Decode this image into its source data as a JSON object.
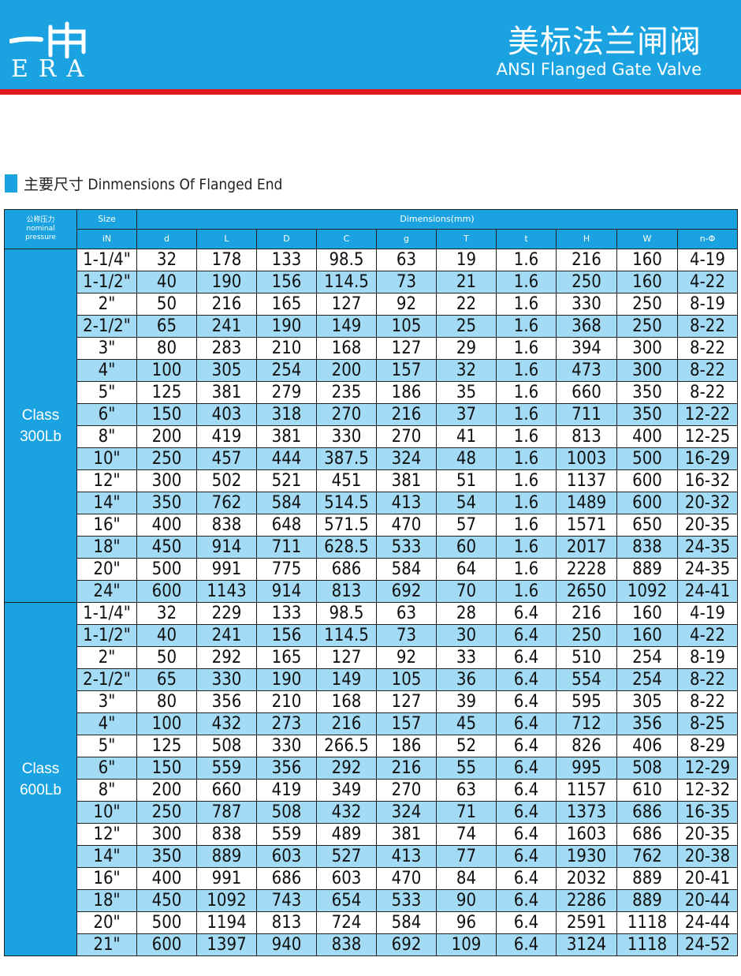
{
  "header": {
    "logo_cn": "一冉",
    "logo_en": "ERA",
    "title_cn": "美标法兰闸阀",
    "title_en": "ANSI Flanged Gate Valve"
  },
  "section": {
    "title": "主要尺寸 Dinmensions Of Flanged End"
  },
  "table": {
    "pressure_header_cn": "公称压力",
    "pressure_header_en1": "nominal",
    "pressure_header_en2": "pressure",
    "size_header": "Size",
    "dimensions_header": "Dimensions(mm)",
    "columns": [
      "iN",
      "d",
      "L",
      "D",
      "C",
      "g",
      "T",
      "t",
      "H",
      "W",
      "n-Φ"
    ],
    "groups": [
      {
        "class_line1": "Class",
        "class_line2": "300Lb",
        "rows": [
          [
            "1-1/4\"",
            "32",
            "178",
            "133",
            "98.5",
            "63",
            "19",
            "1.6",
            "216",
            "160",
            "4-19"
          ],
          [
            "1-1/2\"",
            "40",
            "190",
            "156",
            "114.5",
            "73",
            "21",
            "1.6",
            "250",
            "160",
            "4-22"
          ],
          [
            "2\"",
            "50",
            "216",
            "165",
            "127",
            "92",
            "22",
            "1.6",
            "330",
            "250",
            "8-19"
          ],
          [
            "2-1/2\"",
            "65",
            "241",
            "190",
            "149",
            "105",
            "25",
            "1.6",
            "368",
            "250",
            "8-22"
          ],
          [
            "3\"",
            "80",
            "283",
            "210",
            "168",
            "127",
            "29",
            "1.6",
            "394",
            "300",
            "8-22"
          ],
          [
            "4\"",
            "100",
            "305",
            "254",
            "200",
            "157",
            "32",
            "1.6",
            "473",
            "300",
            "8-22"
          ],
          [
            "5\"",
            "125",
            "381",
            "279",
            "235",
            "186",
            "35",
            "1.6",
            "660",
            "350",
            "8-22"
          ],
          [
            "6\"",
            "150",
            "403",
            "318",
            "270",
            "216",
            "37",
            "1.6",
            "711",
            "350",
            "12-22"
          ],
          [
            "8\"",
            "200",
            "419",
            "381",
            "330",
            "270",
            "41",
            "1.6",
            "813",
            "400",
            "12-25"
          ],
          [
            "10\"",
            "250",
            "457",
            "444",
            "387.5",
            "324",
            "48",
            "1.6",
            "1003",
            "500",
            "16-29"
          ],
          [
            "12\"",
            "300",
            "502",
            "521",
            "451",
            "381",
            "51",
            "1.6",
            "1137",
            "600",
            "16-32"
          ],
          [
            "14\"",
            "350",
            "762",
            "584",
            "514.5",
            "413",
            "54",
            "1.6",
            "1489",
            "600",
            "20-32"
          ],
          [
            "16\"",
            "400",
            "838",
            "648",
            "571.5",
            "470",
            "57",
            "1.6",
            "1571",
            "650",
            "20-35"
          ],
          [
            "18\"",
            "450",
            "914",
            "711",
            "628.5",
            "533",
            "60",
            "1.6",
            "2017",
            "838",
            "24-35"
          ],
          [
            "20\"",
            "500",
            "991",
            "775",
            "686",
            "584",
            "64",
            "1.6",
            "2228",
            "889",
            "24-35"
          ],
          [
            "24\"",
            "600",
            "1143",
            "914",
            "813",
            "692",
            "70",
            "1.6",
            "2650",
            "1092",
            "24-41"
          ]
        ]
      },
      {
        "class_line1": "Class",
        "class_line2": "600Lb",
        "rows": [
          [
            "1-1/4\"",
            "32",
            "229",
            "133",
            "98.5",
            "63",
            "28",
            "6.4",
            "216",
            "160",
            "4-19"
          ],
          [
            "1-1/2\"",
            "40",
            "241",
            "156",
            "114.5",
            "73",
            "30",
            "6.4",
            "250",
            "160",
            "4-22"
          ],
          [
            "2\"",
            "50",
            "292",
            "165",
            "127",
            "92",
            "33",
            "6.4",
            "510",
            "254",
            "8-19"
          ],
          [
            "2-1/2\"",
            "65",
            "330",
            "190",
            "149",
            "105",
            "36",
            "6.4",
            "554",
            "254",
            "8-22"
          ],
          [
            "3\"",
            "80",
            "356",
            "210",
            "168",
            "127",
            "39",
            "6.4",
            "595",
            "305",
            "8-22"
          ],
          [
            "4\"",
            "100",
            "432",
            "273",
            "216",
            "157",
            "45",
            "6.4",
            "712",
            "356",
            "8-25"
          ],
          [
            "5\"",
            "125",
            "508",
            "330",
            "266.5",
            "186",
            "52",
            "6.4",
            "826",
            "406",
            "8-29"
          ],
          [
            "6\"",
            "150",
            "559",
            "356",
            "292",
            "216",
            "55",
            "6.4",
            "995",
            "508",
            "12-29"
          ],
          [
            "8\"",
            "200",
            "660",
            "419",
            "349",
            "270",
            "63",
            "6.4",
            "1157",
            "610",
            "12-32"
          ],
          [
            "10\"",
            "250",
            "787",
            "508",
            "432",
            "324",
            "71",
            "6.4",
            "1373",
            "686",
            "16-35"
          ],
          [
            "12\"",
            "300",
            "838",
            "559",
            "489",
            "381",
            "74",
            "6.4",
            "1603",
            "686",
            "20-35"
          ],
          [
            "14\"",
            "350",
            "889",
            "603",
            "527",
            "413",
            "77",
            "6.4",
            "1930",
            "762",
            "20-38"
          ],
          [
            "16\"",
            "400",
            "991",
            "686",
            "603",
            "470",
            "84",
            "6.4",
            "2032",
            "889",
            "20-41"
          ],
          [
            "18\"",
            "450",
            "1092",
            "743",
            "654",
            "533",
            "90",
            "6.4",
            "2286",
            "889",
            "20-44"
          ],
          [
            "20\"",
            "500",
            "1194",
            "813",
            "724",
            "584",
            "96",
            "6.4",
            "2591",
            "1118",
            "24-44"
          ],
          [
            "21\"",
            "600",
            "1397",
            "940",
            "838",
            "692",
            "109",
            "6.4",
            "3124",
            "1118",
            "24-52"
          ]
        ]
      }
    ]
  }
}
